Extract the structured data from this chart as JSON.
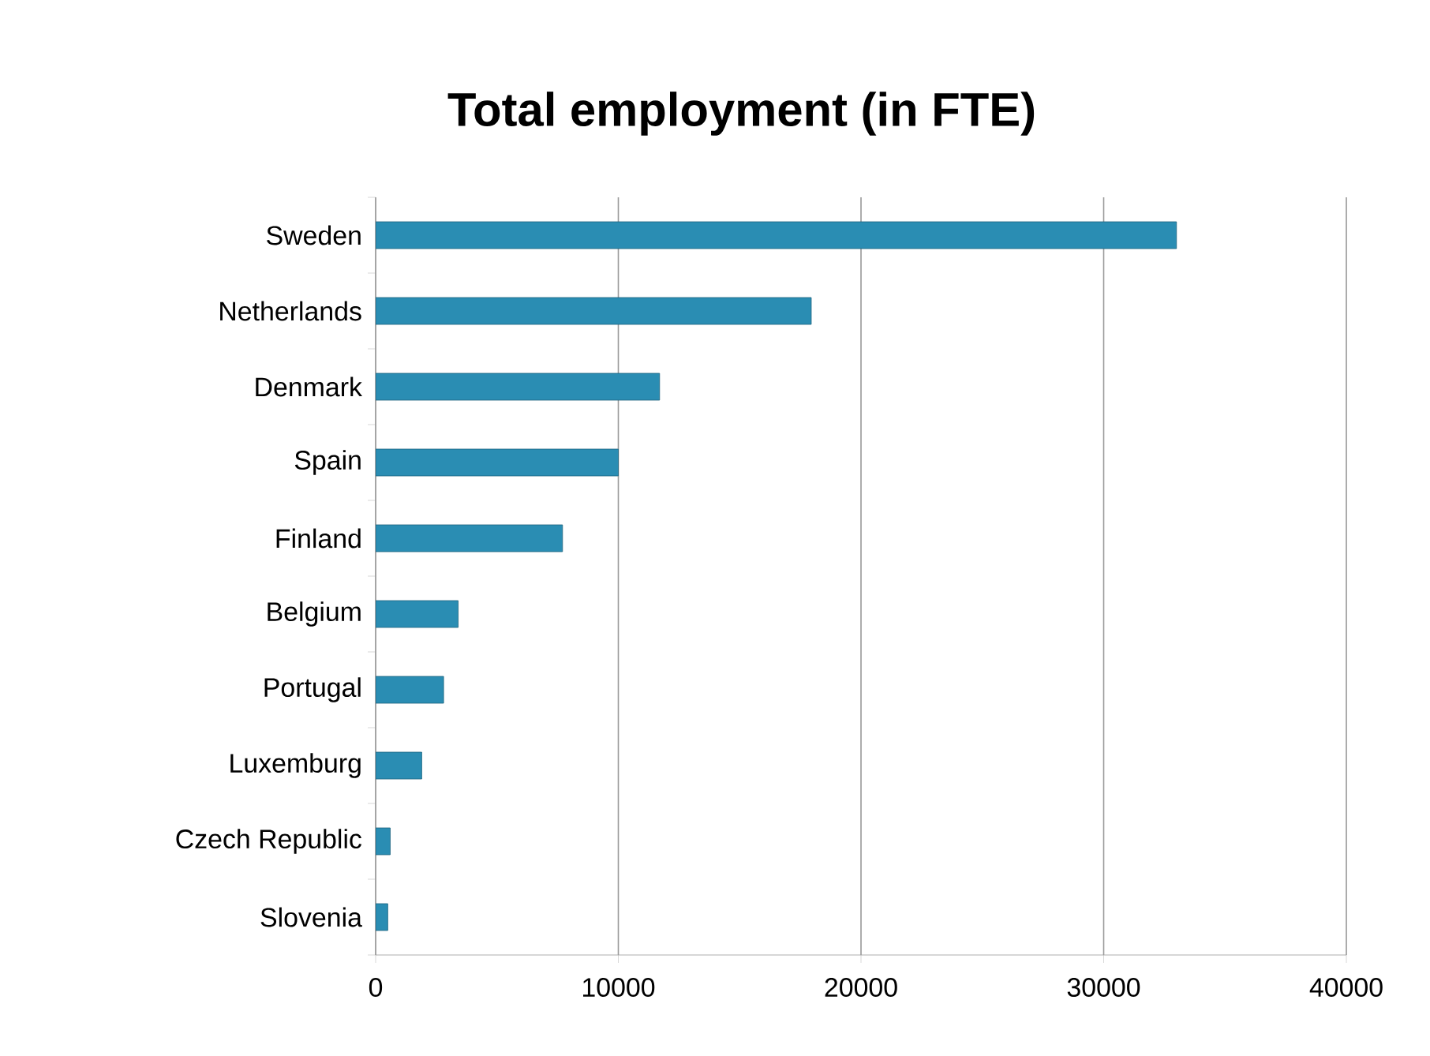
{
  "chart_data": {
    "type": "bar",
    "orientation": "horizontal",
    "title": "Total employment (in FTE)",
    "categories": [
      "Sweden",
      "Netherlands",
      "Denmark",
      "Spain",
      "Finland",
      "Belgium",
      "Portugal",
      "Luxemburg",
      "Czech Republic",
      "Slovenia"
    ],
    "values": [
      33000,
      17950,
      11700,
      10000,
      7700,
      3400,
      2800,
      1900,
      600,
      500
    ],
    "color": "#2a8db3",
    "xlim": [
      0,
      40000
    ],
    "xticks": [
      0,
      10000,
      20000,
      30000,
      40000
    ],
    "grid": "x"
  }
}
